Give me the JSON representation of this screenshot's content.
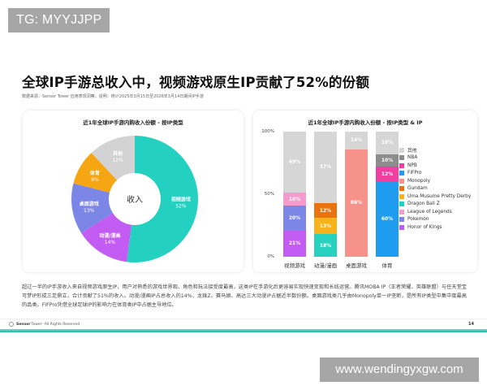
{
  "watermarks": {
    "top": "TG: MYYJJPP",
    "bottom": "www.wendingyxgw.com"
  },
  "header": {
    "title": "全球IP手游总收入中，视频游戏原生IP贡献了52%的份额",
    "source": "数据来源：Sensor Tower 应用表现洞察。说明：统计2025年3月15日至2026年3月14日期间IP手游"
  },
  "donut": {
    "title": "近1年全球IP手游内购收入份额 - 按IP类型",
    "center_label": "收入",
    "watermark": "SensorTower"
  },
  "bars": {
    "title": "近1年全球IP手游内购收入份额 - 按IP类型 & IP",
    "y_ticks": [
      "100%",
      "50%",
      "0%"
    ]
  },
  "chart_data": [
    {
      "type": "pie",
      "title": "近1年全球IP手游内购收入份额 - 按IP类型",
      "subtype": "donut",
      "center_label": "收入",
      "categories": [
        "视频游戏",
        "动漫/漫画",
        "桌面游戏",
        "体育",
        "其他"
      ],
      "values": [
        52,
        14,
        13,
        9,
        12
      ],
      "labels": [
        "52%",
        "14%",
        "13%",
        "9%",
        "12%"
      ],
      "colors": [
        "#24d0bf",
        "#c35cf2",
        "#7b86e6",
        "#f5a612",
        "#d3d3d3"
      ]
    },
    {
      "type": "bar",
      "stacked": true,
      "normalized": true,
      "title": "近1年全球IP手游内购收入份额 - 按IP类型 & IP",
      "xlabel": "",
      "ylabel": "",
      "ylim": [
        0,
        100
      ],
      "y_ticks": [
        "0%",
        "50%",
        "100%"
      ],
      "legend_position": "right",
      "categories": [
        "视频游戏",
        "动漫/漫画",
        "桌面游戏",
        "体育"
      ],
      "legend": [
        {
          "name": "其他",
          "color": "#d6d6d6"
        },
        {
          "name": "NBA",
          "color": "#8c8c8c"
        },
        {
          "name": "NPB",
          "color": "#ef3fa0"
        },
        {
          "name": "FIFPro",
          "color": "#1d9cf0"
        },
        {
          "name": "Monopoly",
          "color": "#f7928a"
        },
        {
          "name": "Gundam",
          "color": "#e8730f"
        },
        {
          "name": "Uma Musume Pretty Derby",
          "color": "#f8b21a"
        },
        {
          "name": "Dragon Ball Z",
          "color": "#28d1bd"
        },
        {
          "name": "League of Legends",
          "color": "#f59ccc"
        },
        {
          "name": "Pokemon",
          "color": "#7b86e6"
        },
        {
          "name": "Honor of Kings",
          "color": "#c35cf2"
        }
      ],
      "stacks": [
        {
          "category": "视频游戏",
          "segments": [
            {
              "name": "Honor of Kings",
              "value": 21,
              "label": "21%",
              "color": "#c35cf2"
            },
            {
              "name": "Pokemon",
              "value": 20,
              "label": "20%",
              "color": "#7b86e6"
            },
            {
              "name": "League of Legends",
              "value": 10,
              "label": "10%",
              "color": "#f59ccc"
            },
            {
              "name": "其他",
              "value": 49,
              "label": "49%",
              "color": "#d6d6d6"
            }
          ]
        },
        {
          "category": "动漫/漫画",
          "segments": [
            {
              "name": "Dragon Ball Z",
              "value": 18,
              "label": "18%",
              "color": "#28d1bd"
            },
            {
              "name": "Uma Musume Pretty Derby",
              "value": 13,
              "label": "13%",
              "color": "#f8b21a"
            },
            {
              "name": "Gundam",
              "value": 12,
              "label": "12%",
              "color": "#e8730f"
            },
            {
              "name": "其他",
              "value": 57,
              "label": "57%",
              "color": "#d6d6d6"
            }
          ]
        },
        {
          "category": "桌面游戏",
          "segments": [
            {
              "name": "Monopoly",
              "value": 86,
              "label": "86%",
              "color": "#f7928a"
            },
            {
              "name": "其他",
              "value": 14,
              "label": "14%",
              "color": "#d6d6d6"
            }
          ]
        },
        {
          "category": "体育",
          "segments": [
            {
              "name": "FIFPro",
              "value": 60,
              "label": "60%",
              "color": "#1d9cf0"
            },
            {
              "name": "NPB",
              "value": 12,
              "label": "12%",
              "color": "#ef3fa0"
            },
            {
              "name": "NBA",
              "value": 10,
              "label": "10%",
              "color": "#8c8c8c"
            },
            {
              "name": "其他",
              "value": 18,
              "label": "18%",
              "color": "#d6d6d6"
            }
          ]
        }
      ]
    }
  ],
  "body": {
    "paragraph": "超过一半的IP手游收入来自视频游戏原生IP，用户对熟悉的游戏世界观、角色和玩法接受度最高，这类IP在手游化后更容易实现快速变现和长线运营。腾讯MOBA IP（王者荣耀、英雄联盟）与任天堂宝可梦IP形成三足鼎立，合计贡献了51%的收入。动漫/漫画IP占总收入的14%，龙珠Z、赛马娘、高达三大动漫IP占据近半数份额。桌面游戏类几乎由Monopoly单一IP垄断，是所有IP类型中集中度最高的品类。FIFPro凭借全球足球IP的影响力在体育类IP中占据主导地位。"
  },
  "footer": {
    "brand_bold": "Sensor",
    "brand_rest": "Tower",
    "rights": " - All Rights Reserved",
    "page_number": "14"
  }
}
